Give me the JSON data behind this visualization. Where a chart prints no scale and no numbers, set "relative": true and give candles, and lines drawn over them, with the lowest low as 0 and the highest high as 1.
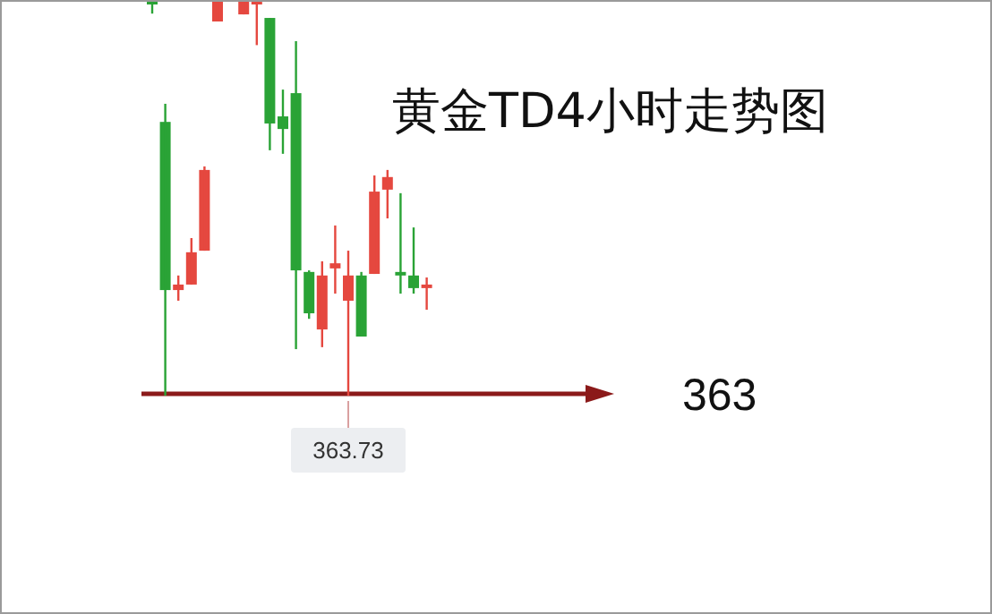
{
  "chart_data": {
    "type": "candlestick",
    "title": "黄金TD4小时走势图",
    "relative": true,
    "categories": [
      null,
      null,
      null,
      null,
      null,
      null,
      null,
      null,
      null,
      null,
      null,
      null,
      null,
      null,
      null,
      null,
      null,
      null,
      null,
      null,
      null,
      null
    ],
    "ohlc": [
      [
        1,
        1,
        0.97,
        1
      ],
      [
        0.695,
        0.741,
        0,
        0.268
      ],
      [
        0.268,
        0.305,
        0.241,
        0.282
      ],
      [
        0.282,
        0.4,
        0.282,
        0.364
      ],
      [
        0.368,
        0.582,
        0.368,
        0.573
      ],
      [
        0.95,
        1,
        0.95,
        1
      ],
      null,
      [
        0.968,
        1,
        0.968,
        1
      ],
      [
        1,
        1,
        0.89,
        1
      ],
      [
        0.959,
        0.959,
        0.623,
        0.691
      ],
      [
        0.709,
        0.777,
        0.614,
        0.677
      ],
      [
        0.768,
        0.9,
        0.118,
        0.318
      ],
      [
        0.314,
        0.318,
        0.195,
        0.209
      ],
      [
        0.168,
        0.341,
        0.123,
        0.305
      ],
      [
        0.323,
        0.432,
        0.259,
        0.336
      ],
      [
        0.241,
        0.368,
        0,
        0.305
      ],
      [
        0.305,
        0.314,
        0.15,
        0.15
      ],
      [
        0.309,
        0.559,
        0.309,
        0.518
      ],
      [
        0.523,
        0.573,
        0.45,
        0.555
      ],
      [
        0.314,
        0.514,
        0.259,
        0.305
      ],
      [
        0.305,
        0.427,
        0.259,
        0.273
      ],
      [
        0.273,
        0.3,
        0.218,
        0.282
      ]
    ],
    "colors": [
      "#2aa336",
      "#2aa336",
      "#e5483f",
      "#e5483f",
      "#e5483f",
      "#e5483f",
      null,
      "#e5483f",
      "#e5483f",
      "#2aa336",
      "#2aa336",
      "#2aa336",
      "#2aa336",
      "#e5483f",
      "#e5483f",
      "#e5483f",
      "#2aa336",
      "#e5483f",
      "#e5483f",
      "#2aa336",
      "#2aa336",
      "#e5483f"
    ],
    "annotations": [
      "363",
      "363.73"
    ]
  }
}
